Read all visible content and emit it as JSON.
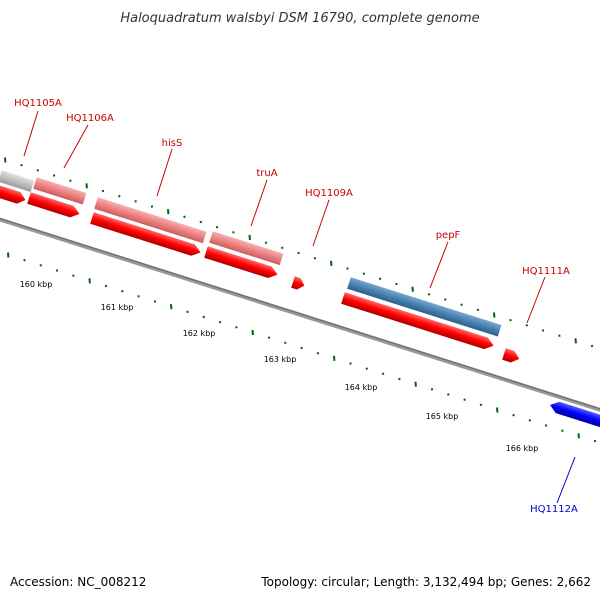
{
  "title": "Haloquadratum walsbyi DSM 16790, complete genome",
  "footer": {
    "accession": "Accession: NC_008212",
    "topology": "Topology: circular; Length: 3,132,494 bp; Genes: 2,662"
  },
  "gene_labels": {
    "hq1105a": "HQ1105A",
    "hq1106a": "HQ1106A",
    "hiss": "hisS",
    "trua": "truA",
    "hq1109a": "HQ1109A",
    "pepf": "pepF",
    "hq1111a": "HQ1111A",
    "hq1112a": "HQ1112A"
  },
  "kbp_labels": {
    "k160": "160 kbp",
    "k161": "161 kbp",
    "k162": "162 kbp",
    "k163": "163 kbp",
    "k164": "164 kbp",
    "k165": "165 kbp",
    "k166": "166 kbp"
  },
  "colors": {
    "backbone": "#808080",
    "forward_cds": "#ff0000",
    "reverse_cds": "#0000ff",
    "rna_pink": "#f08080",
    "rna_blue": "#4682b4",
    "rna_gray": "#c0c0c0",
    "tick_green": "#006400",
    "label_red": "#cc0000",
    "label_blue": "#0000cc"
  }
}
